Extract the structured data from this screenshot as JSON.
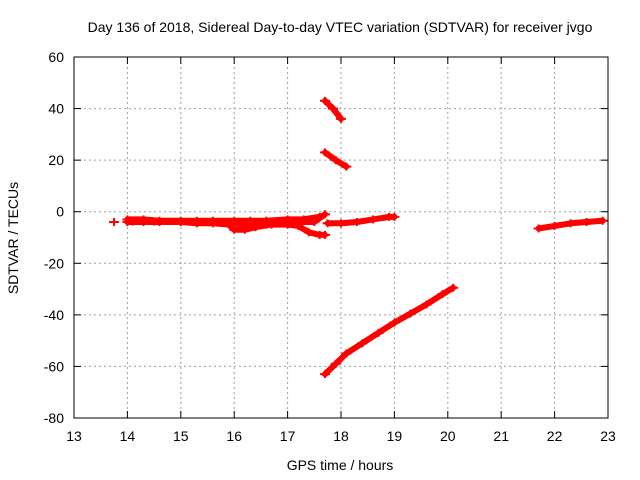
{
  "chart_data": {
    "type": "scatter",
    "title": "Day 136 of 2018, Sidereal Day-to-day VTEC variation (SDTVAR) for receiver jvgo",
    "xlabel": "GPS time / hours",
    "ylabel": "SDTVAR / TECUs",
    "xlim": [
      13,
      23
    ],
    "ylim": [
      -80,
      60
    ],
    "xticks": [
      13,
      14,
      15,
      16,
      17,
      18,
      19,
      20,
      21,
      22,
      23
    ],
    "yticks": [
      -80,
      -60,
      -40,
      -20,
      0,
      20,
      40,
      60
    ],
    "grid": true,
    "marker_color": "#ff0000",
    "series": [
      {
        "name": "isolated-point",
        "points": [
          [
            13.75,
            -4
          ]
        ]
      },
      {
        "name": "main-band-upper",
        "points": [
          [
            14.0,
            -3
          ],
          [
            14.3,
            -3
          ],
          [
            14.6,
            -3.5
          ],
          [
            15.0,
            -3.5
          ],
          [
            15.3,
            -3.5
          ],
          [
            15.6,
            -3.5
          ],
          [
            16.0,
            -3.5
          ],
          [
            16.3,
            -3.5
          ],
          [
            16.6,
            -3.5
          ],
          [
            17.0,
            -3
          ],
          [
            17.3,
            -3
          ],
          [
            17.6,
            -2
          ]
        ]
      },
      {
        "name": "main-band-lower",
        "points": [
          [
            14.0,
            -4
          ],
          [
            14.3,
            -4
          ],
          [
            14.6,
            -4
          ],
          [
            15.0,
            -4
          ],
          [
            15.3,
            -4.5
          ],
          [
            15.6,
            -4.5
          ],
          [
            15.9,
            -5
          ],
          [
            16.0,
            -7
          ],
          [
            16.2,
            -7
          ],
          [
            16.4,
            -6
          ],
          [
            16.7,
            -5
          ],
          [
            17.0,
            -5
          ],
          [
            17.2,
            -5.5
          ],
          [
            17.4,
            -8
          ],
          [
            17.6,
            -9
          ],
          [
            17.7,
            -9
          ]
        ]
      },
      {
        "name": "main-band-mid",
        "points": [
          [
            14.1,
            -3.8
          ],
          [
            14.5,
            -3.8
          ],
          [
            15.0,
            -4
          ],
          [
            15.5,
            -4
          ],
          [
            16.0,
            -4.5
          ],
          [
            16.3,
            -5.5
          ],
          [
            16.6,
            -5
          ],
          [
            16.9,
            -4.5
          ],
          [
            17.2,
            -4
          ],
          [
            17.5,
            -4
          ],
          [
            17.7,
            -1
          ]
        ]
      },
      {
        "name": "after-18h",
        "points": [
          [
            17.75,
            -4.5
          ],
          [
            18.0,
            -4.5
          ],
          [
            18.3,
            -4
          ],
          [
            18.6,
            -3
          ],
          [
            18.9,
            -2
          ],
          [
            19.0,
            -2
          ]
        ]
      },
      {
        "name": "upper-arc-1",
        "points": [
          [
            17.7,
            43
          ],
          [
            17.85,
            40
          ],
          [
            18.0,
            36
          ]
        ]
      },
      {
        "name": "upper-arc-2",
        "points": [
          [
            17.7,
            23
          ],
          [
            17.9,
            20
          ],
          [
            18.1,
            17.5
          ]
        ]
      },
      {
        "name": "lower-arc",
        "points": [
          [
            17.7,
            -63
          ],
          [
            17.9,
            -59
          ],
          [
            18.1,
            -55
          ],
          [
            18.4,
            -51
          ],
          [
            18.7,
            -47
          ],
          [
            19.0,
            -43
          ],
          [
            19.3,
            -39.5
          ],
          [
            19.6,
            -36
          ],
          [
            19.9,
            -32
          ],
          [
            20.1,
            -29.5
          ]
        ]
      },
      {
        "name": "late-segment",
        "points": [
          [
            21.7,
            -6.5
          ],
          [
            22.0,
            -5.5
          ],
          [
            22.3,
            -4.5
          ],
          [
            22.6,
            -4
          ],
          [
            22.9,
            -3.5
          ]
        ]
      }
    ]
  }
}
